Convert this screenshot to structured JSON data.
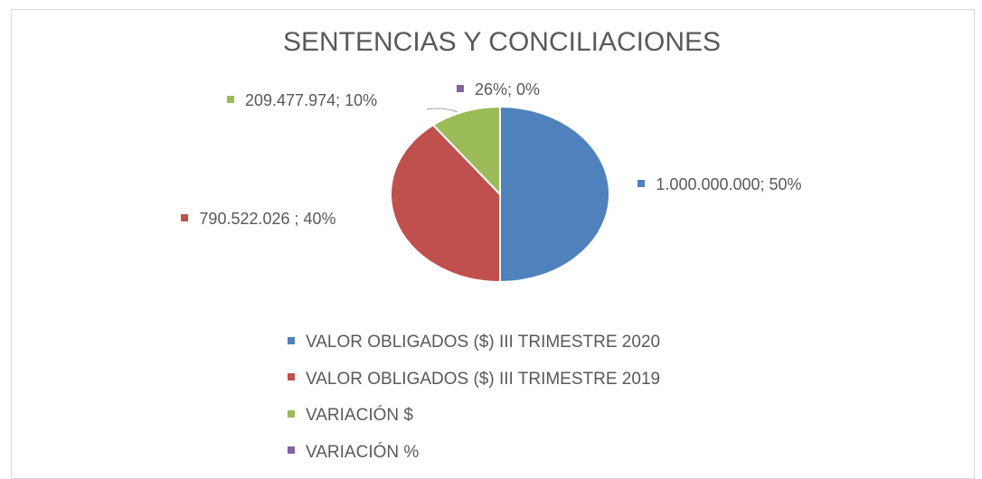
{
  "chart_data": {
    "type": "pie",
    "title": "SENTENCIAS Y CONCILIACIONES",
    "categories": [
      "VALOR OBLIGADOS ($) III TRIMESTRE 2020",
      "VALOR OBLIGADOS ($) III TRIMESTRE 2019",
      "VARIACIÓN $",
      "VARIACIÓN %"
    ],
    "values": [
      1000000000,
      790522026,
      209477974,
      26
    ],
    "value_labels": [
      "1.000.000.000; 50%",
      "790.522.026 ; 40%",
      "209.477.974; 10%",
      "26%; 0%"
    ],
    "colors": [
      "#4f81bd",
      "#c0504d",
      "#9bbb59",
      "#8064a2"
    ],
    "legend": "bottom"
  }
}
